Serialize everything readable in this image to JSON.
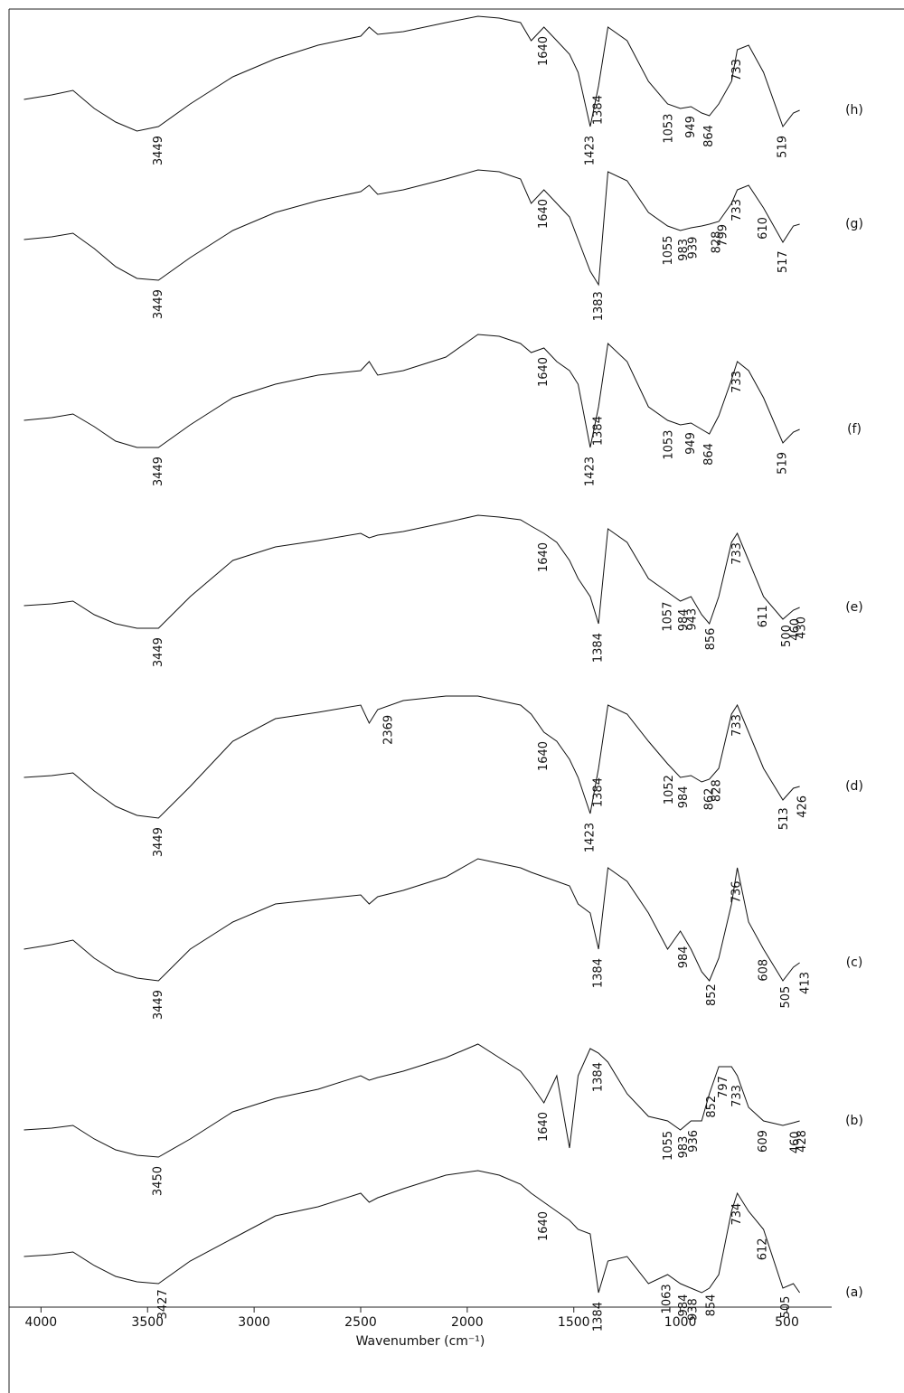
{
  "chart_data": {
    "type": "line",
    "x_label": "Wavenumber (cm⁻¹)",
    "x": [
      4080,
      3950,
      3850,
      3750,
      3650,
      3550,
      3449,
      3300,
      3100,
      2900,
      2700,
      2500,
      2460,
      2420,
      2300,
      2100,
      1950,
      1850,
      1750,
      1700,
      1640,
      1580,
      1520,
      1480,
      1423,
      1384,
      1340,
      1250,
      1150,
      1060,
      1000,
      950,
      900,
      864,
      820,
      760,
      733,
      680,
      610,
      519,
      470,
      440
    ],
    "xlim": [
      4150,
      290
    ],
    "xticks": [
      4000,
      3500,
      3000,
      2500,
      2000,
      1500,
      1000,
      500
    ],
    "ylim": [
      1446,
      0
    ],
    "series": [
      {
        "name": "(h)",
        "color": "#111111",
        "values": [
          110,
          105,
          100,
          120,
          135,
          145,
          140,
          115,
          85,
          65,
          50,
          40,
          30,
          38,
          35,
          25,
          18,
          20,
          25,
          45,
          30,
          45,
          60,
          80,
          140,
          95,
          30,
          45,
          90,
          115,
          120,
          118,
          125,
          128,
          115,
          90,
          55,
          50,
          80,
          140,
          125,
          122
        ],
        "peaks": [
          3449,
          1640,
          1423,
          1384,
          1053,
          949,
          864,
          733,
          519
        ]
      },
      {
        "name": "(g)",
        "color": "#111111",
        "values": [
          265,
          262,
          258,
          275,
          295,
          308,
          310,
          285,
          255,
          235,
          222,
          212,
          205,
          215,
          210,
          198,
          188,
          190,
          198,
          225,
          210,
          225,
          240,
          265,
          300,
          315,
          190,
          200,
          235,
          250,
          255,
          252,
          250,
          248,
          245,
          225,
          210,
          205,
          230,
          268,
          250,
          248
        ],
        "peaks": [
          3449,
          1640,
          1383,
          1055,
          983,
          939,
          828,
          799,
          733,
          610,
          517
        ]
      },
      {
        "name": "(f)",
        "color": "#111111",
        "values": [
          465,
          462,
          458,
          472,
          488,
          495,
          495,
          470,
          440,
          425,
          415,
          410,
          400,
          415,
          410,
          395,
          370,
          372,
          380,
          390,
          385,
          400,
          410,
          425,
          495,
          450,
          380,
          400,
          450,
          465,
          470,
          468,
          475,
          480,
          460,
          420,
          400,
          410,
          440,
          490,
          478,
          475
        ],
        "peaks": [
          3449,
          1640,
          1423,
          1384,
          1053,
          949,
          864,
          733,
          519
        ]
      },
      {
        "name": "(e)",
        "color": "#111111",
        "values": [
          670,
          668,
          665,
          680,
          690,
          695,
          695,
          660,
          620,
          605,
          598,
          590,
          595,
          592,
          588,
          578,
          570,
          572,
          575,
          582,
          590,
          600,
          620,
          640,
          660,
          690,
          585,
          600,
          640,
          655,
          665,
          660,
          680,
          690,
          660,
          600,
          590,
          620,
          660,
          685,
          675,
          672
        ],
        "peaks": [
          3449,
          1640,
          1384,
          1057,
          984,
          943,
          856,
          733,
          611,
          500,
          460,
          430
        ]
      },
      {
        "name": "(d)",
        "color": "#111111",
        "values": [
          860,
          858,
          855,
          875,
          892,
          902,
          905,
          870,
          820,
          795,
          788,
          780,
          800,
          785,
          775,
          770,
          770,
          775,
          780,
          790,
          810,
          820,
          840,
          860,
          900,
          850,
          780,
          790,
          820,
          845,
          860,
          858,
          865,
          862,
          850,
          790,
          780,
          810,
          850,
          885,
          872,
          870
        ],
        "peaks": [
          3449,
          2369,
          1640,
          1423,
          1384,
          1052,
          984,
          862,
          828,
          733,
          513,
          426
        ]
      },
      {
        "name": "(c)",
        "color": "#111111",
        "values": [
          1050,
          1045,
          1040,
          1060,
          1075,
          1082,
          1085,
          1050,
          1020,
          1000,
          995,
          990,
          1000,
          992,
          985,
          970,
          950,
          955,
          960,
          965,
          970,
          975,
          980,
          1000,
          1010,
          1050,
          960,
          975,
          1010,
          1050,
          1030,
          1050,
          1075,
          1085,
          1060,
          1000,
          960,
          1020,
          1050,
          1085,
          1070,
          1065
        ],
        "peaks": [
          3449,
          1384,
          984,
          852,
          736,
          608,
          505,
          413
        ]
      },
      {
        "name": "(b)",
        "color": "#111111",
        "values": [
          1250,
          1248,
          1245,
          1260,
          1272,
          1278,
          1280,
          1260,
          1230,
          1215,
          1205,
          1190,
          1195,
          1192,
          1185,
          1170,
          1155,
          1170,
          1185,
          1200,
          1220,
          1190,
          1270,
          1190,
          1160,
          1165,
          1175,
          1210,
          1235,
          1240,
          1250,
          1240,
          1240,
          1210,
          1180,
          1180,
          1190,
          1225,
          1240,
          1245,
          1242,
          1240
        ],
        "peaks": [
          3450,
          1640,
          1384,
          1055,
          983,
          936,
          852,
          797,
          733,
          609,
          460,
          428
        ]
      },
      {
        "name": "(a)",
        "color": "#111111",
        "values": [
          1390,
          1388,
          1385,
          1400,
          1412,
          1418,
          1420,
          1395,
          1370,
          1345,
          1335,
          1320,
          1330,
          1325,
          1315,
          1300,
          1295,
          1300,
          1310,
          1320,
          1330,
          1340,
          1350,
          1360,
          1365,
          1430,
          1395,
          1390,
          1420,
          1410,
          1420,
          1425,
          1430,
          1425,
          1410,
          1340,
          1320,
          1340,
          1360,
          1425,
          1420,
          1430
        ],
        "peaks": [
          3427,
          1640,
          1384,
          1063,
          984,
          938,
          854,
          734,
          612,
          505
        ]
      }
    ]
  }
}
